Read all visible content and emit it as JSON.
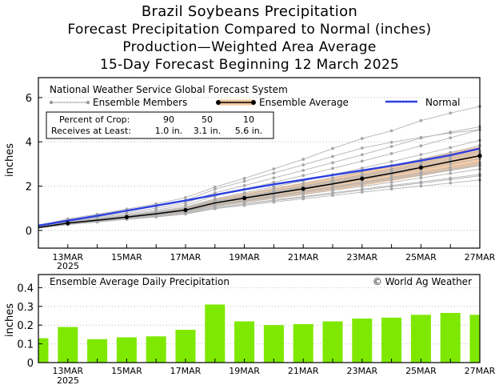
{
  "header": {
    "title": "Brazil Soybeans Precipitation",
    "subtitle1": "Forecast Precipitation Compared to Normal (inches)",
    "subtitle2": "Production—Weighted Area Average",
    "subtitle3": "15-Day Forecast Beginning 12 March 2025"
  },
  "colors": {
    "ensemble_member": "#b4b4b4",
    "ensemble_average": "#000000",
    "spread_band": "#f3c49a",
    "normal": "#2b3fe0",
    "bar": "#7fe800"
  },
  "chart_data": [
    {
      "type": "line",
      "title": "National Weather Service Global Forecast System",
      "ylabel": "inches",
      "xlabel": "",
      "x_labels": [
        "13MAR",
        "15MAR",
        "17MAR",
        "19MAR",
        "21MAR",
        "23MAR",
        "25MAR",
        "27MAR"
      ],
      "x_sublabel": "2025",
      "y_ticks": [
        0,
        2,
        4,
        6
      ],
      "ylim": [
        -0.8,
        6.9
      ],
      "days": [
        12,
        13,
        14,
        15,
        16,
        17,
        18,
        19,
        20,
        21,
        22,
        23,
        24,
        25,
        26,
        27
      ],
      "legend": {
        "members": "Ensemble Members",
        "average": "Ensemble Average",
        "normal": "Normal"
      },
      "crop_table": {
        "row1_label": "Percent of Crop:",
        "row2_label": "Receives at Least:",
        "percents": [
          "90",
          "50",
          "10"
        ],
        "amounts": [
          "1.0 in.",
          "3.1 in.",
          "5.6 in."
        ]
      },
      "series": [
        {
          "name": "Ensemble Average",
          "values": [
            0.13,
            0.33,
            0.46,
            0.6,
            0.75,
            0.92,
            1.24,
            1.46,
            1.67,
            1.88,
            2.1,
            2.34,
            2.58,
            2.84,
            3.11,
            3.37
          ]
        },
        {
          "name": "Normal",
          "values": [
            0.22,
            0.44,
            0.66,
            0.89,
            1.12,
            1.35,
            1.6,
            1.85,
            2.08,
            2.29,
            2.5,
            2.71,
            2.92,
            3.15,
            3.4,
            3.7
          ]
        },
        {
          "name": "Spread Low",
          "values": [
            0.12,
            0.29,
            0.41,
            0.54,
            0.66,
            0.8,
            1.07,
            1.25,
            1.43,
            1.61,
            1.8,
            2.02,
            2.23,
            2.46,
            2.7,
            2.95
          ]
        },
        {
          "name": "Spread High",
          "values": [
            0.16,
            0.39,
            0.54,
            0.7,
            0.86,
            1.05,
            1.42,
            1.67,
            1.92,
            2.16,
            2.41,
            2.67,
            2.93,
            3.22,
            3.51,
            3.8
          ]
        }
      ],
      "members": [
        [
          0.1,
          0.26,
          0.38,
          0.5,
          0.61,
          0.74,
          0.98,
          1.13,
          1.28,
          1.43,
          1.58,
          1.73,
          1.87,
          2.0,
          2.14,
          2.28
        ],
        [
          0.11,
          0.28,
          0.4,
          0.52,
          0.64,
          0.78,
          1.04,
          1.2,
          1.37,
          1.53,
          1.7,
          1.86,
          2.03,
          2.19,
          2.36,
          2.53
        ],
        [
          0.12,
          0.3,
          0.42,
          0.55,
          0.68,
          0.82,
          1.09,
          1.27,
          1.45,
          1.63,
          1.81,
          1.99,
          2.17,
          2.37,
          2.57,
          2.77
        ],
        [
          0.12,
          0.31,
          0.43,
          0.57,
          0.7,
          0.85,
          1.13,
          1.32,
          1.51,
          1.7,
          1.89,
          2.09,
          2.29,
          2.5,
          2.71,
          2.92
        ],
        [
          0.13,
          0.32,
          0.44,
          0.58,
          0.72,
          0.88,
          1.17,
          1.37,
          1.57,
          1.77,
          1.97,
          2.18,
          2.4,
          2.62,
          2.84,
          3.06
        ],
        [
          0.13,
          0.33,
          0.46,
          0.6,
          0.75,
          0.92,
          1.22,
          1.43,
          1.64,
          1.85,
          2.07,
          2.29,
          2.52,
          2.76,
          3.0,
          3.24
        ],
        [
          0.14,
          0.34,
          0.47,
          0.62,
          0.77,
          0.95,
          1.27,
          1.49,
          1.71,
          1.93,
          2.16,
          2.4,
          2.64,
          2.89,
          3.14,
          3.4
        ],
        [
          0.14,
          0.35,
          0.49,
          0.64,
          0.8,
          0.98,
          1.32,
          1.55,
          1.78,
          2.02,
          2.26,
          2.51,
          2.77,
          3.04,
          3.31,
          3.58
        ],
        [
          0.15,
          0.37,
          0.51,
          0.67,
          0.83,
          1.02,
          1.37,
          1.62,
          1.87,
          2.12,
          2.38,
          2.65,
          2.93,
          3.22,
          3.52,
          3.83
        ],
        [
          0.16,
          0.38,
          0.53,
          0.69,
          0.86,
          1.06,
          1.43,
          1.7,
          1.97,
          2.24,
          2.52,
          2.81,
          3.11,
          3.42,
          3.74,
          4.07
        ],
        [
          0.11,
          0.27,
          0.39,
          0.51,
          0.63,
          0.77,
          1.02,
          1.18,
          1.34,
          1.5,
          1.66,
          1.82,
          1.98,
          2.14,
          2.3,
          2.47
        ],
        [
          0.13,
          0.31,
          0.43,
          0.57,
          0.71,
          0.87,
          1.15,
          1.35,
          1.55,
          1.75,
          1.95,
          2.15,
          2.35,
          2.55,
          2.76,
          2.97
        ],
        [
          0.14,
          0.35,
          0.48,
          0.63,
          0.78,
          0.96,
          1.29,
          1.51,
          1.74,
          1.98,
          2.22,
          2.46,
          2.71,
          2.96,
          3.22,
          3.49
        ],
        [
          0.17,
          0.41,
          0.57,
          0.74,
          0.92,
          1.14,
          1.56,
          1.86,
          2.17,
          2.48,
          2.8,
          3.13,
          3.47,
          3.82,
          4.18,
          4.55
        ],
        [
          0.18,
          0.44,
          0.61,
          0.8,
          1.0,
          1.24,
          1.7,
          2.03,
          2.37,
          2.71,
          3.06,
          3.42,
          3.79,
          4.17,
          4.44,
          4.68
        ],
        [
          0.2,
          0.48,
          0.67,
          0.88,
          1.1,
          1.36,
          1.86,
          2.22,
          2.59,
          2.96,
          3.34,
          3.72,
          3.98,
          4.2,
          4.4,
          4.55
        ],
        [
          0.21,
          0.52,
          0.73,
          0.96,
          1.2,
          1.48,
          1.96,
          2.35,
          2.78,
          3.21,
          3.7,
          4.15,
          4.5,
          4.96,
          5.3,
          5.6
        ]
      ]
    },
    {
      "type": "bar",
      "title": "Ensemble Average Daily Precipitation",
      "annotation": "© World Ag Weather",
      "ylabel": "inches",
      "x_labels": [
        "13MAR",
        "15MAR",
        "17MAR",
        "19MAR",
        "21MAR",
        "23MAR",
        "25MAR",
        "27MAR"
      ],
      "x_sublabel": "2025",
      "y_ticks": [
        "0",
        "0.1",
        "0.2",
        "0.3",
        "0.4"
      ],
      "ylim": [
        0,
        0.47
      ],
      "days": [
        12,
        13,
        14,
        15,
        16,
        17,
        18,
        19,
        20,
        21,
        22,
        23,
        24,
        25,
        26,
        27
      ],
      "values": [
        0.13,
        0.19,
        0.125,
        0.135,
        0.14,
        0.175,
        0.31,
        0.22,
        0.2,
        0.205,
        0.22,
        0.235,
        0.24,
        0.255,
        0.265,
        0.255
      ]
    }
  ]
}
